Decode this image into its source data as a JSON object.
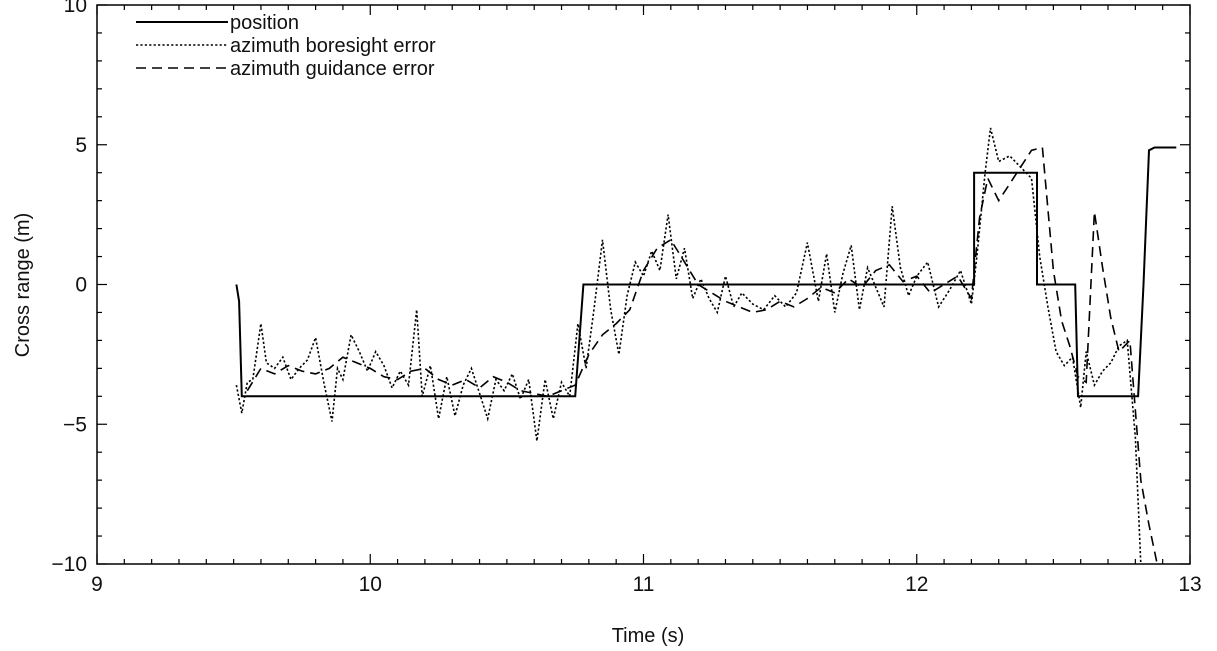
{
  "chart_data": {
    "type": "line",
    "title": "",
    "xlabel": "Time (s)",
    "ylabel": "Cross range (m)",
    "xlim": [
      9,
      13
    ],
    "ylim": [
      -10,
      10
    ],
    "xticks": [
      9,
      10,
      11,
      12,
      13
    ],
    "yticks": [
      -10,
      -5,
      0,
      5,
      10
    ],
    "xtick_labels": [
      "9",
      "10",
      "11",
      "12",
      "13"
    ],
    "ytick_labels": [
      "−10",
      "−5",
      "0",
      "5",
      "10"
    ],
    "grid": false,
    "legend_placement": "top-left",
    "series": [
      {
        "name": "position",
        "style": "solid",
        "color": "#000000",
        "x": [
          9.51,
          9.52,
          9.53,
          10.75,
          10.78,
          12.21,
          12.21,
          12.44,
          12.44,
          12.58,
          12.59,
          12.81,
          12.83,
          12.85,
          12.87,
          12.95
        ],
        "y": [
          0.0,
          -0.6,
          -4.0,
          -4.0,
          0.0,
          0.0,
          4.0,
          4.0,
          0.0,
          0.0,
          -4.0,
          -4.0,
          0.0,
          4.8,
          4.9,
          4.9
        ]
      },
      {
        "name": "azimuth boresight error",
        "style": "dotted",
        "color": "#000000",
        "x": [
          9.51,
          9.53,
          9.55,
          9.57,
          9.6,
          9.62,
          9.65,
          9.68,
          9.71,
          9.74,
          9.77,
          9.8,
          9.83,
          9.86,
          9.88,
          9.9,
          9.93,
          9.96,
          9.99,
          10.02,
          10.05,
          10.08,
          10.11,
          10.14,
          10.17,
          10.19,
          10.22,
          10.25,
          10.28,
          10.31,
          10.34,
          10.37,
          10.4,
          10.43,
          10.46,
          10.49,
          10.52,
          10.55,
          10.58,
          10.61,
          10.64,
          10.67,
          10.7,
          10.73,
          10.76,
          10.79,
          10.82,
          10.85,
          10.88,
          10.91,
          10.94,
          10.97,
          11.0,
          11.03,
          11.06,
          11.09,
          11.12,
          11.15,
          11.18,
          11.21,
          11.24,
          11.27,
          11.3,
          11.33,
          11.36,
          11.4,
          11.44,
          11.48,
          11.52,
          11.56,
          11.6,
          11.64,
          11.67,
          11.7,
          11.73,
          11.76,
          11.79,
          11.82,
          11.85,
          11.88,
          11.91,
          11.94,
          11.97,
          12.0,
          12.04,
          12.08,
          12.12,
          12.16,
          12.2,
          12.22,
          12.25,
          12.27,
          12.3,
          12.34,
          12.38,
          12.42,
          12.45,
          12.48,
          12.51,
          12.54,
          12.57,
          12.6,
          12.62,
          12.65,
          12.68,
          12.71,
          12.74,
          12.77,
          12.8,
          12.82
        ],
        "y": [
          -3.6,
          -4.6,
          -3.5,
          -3.4,
          -1.4,
          -2.8,
          -3.0,
          -2.6,
          -3.4,
          -3.0,
          -2.7,
          -1.9,
          -3.5,
          -4.9,
          -3.0,
          -3.4,
          -1.8,
          -2.4,
          -3.1,
          -2.4,
          -2.9,
          -3.7,
          -3.1,
          -3.6,
          -0.9,
          -4.0,
          -2.9,
          -4.8,
          -3.3,
          -4.7,
          -3.6,
          -3.0,
          -3.9,
          -4.8,
          -3.4,
          -3.8,
          -3.2,
          -4.1,
          -3.4,
          -5.6,
          -3.4,
          -4.8,
          -3.5,
          -4.0,
          -1.4,
          -3.0,
          -0.8,
          1.6,
          -0.9,
          -2.5,
          -0.4,
          0.8,
          0.3,
          1.2,
          0.5,
          2.5,
          0.2,
          1.3,
          -0.5,
          0.2,
          -0.5,
          -1.0,
          0.3,
          -0.8,
          -0.3,
          -0.7,
          -0.9,
          -0.4,
          -0.8,
          -0.3,
          1.5,
          -0.6,
          1.1,
          -1.0,
          0.4,
          1.4,
          -0.9,
          0.6,
          -0.1,
          -0.8,
          2.8,
          0.6,
          -0.4,
          0.3,
          0.8,
          -0.8,
          -0.2,
          0.5,
          -0.7,
          1.0,
          4.0,
          5.6,
          4.4,
          4.6,
          4.2,
          3.8,
          1.0,
          -0.8,
          -2.4,
          -2.9,
          -2.6,
          -4.4,
          -2.4,
          -3.6,
          -3.1,
          -2.8,
          -2.2,
          -2.0,
          -5.5,
          -10.0
        ]
      },
      {
        "name": "azimuth guidance error",
        "style": "dashed",
        "color": "#000000",
        "x": [
          9.55,
          9.6,
          9.65,
          9.7,
          9.75,
          9.8,
          9.85,
          9.9,
          9.95,
          10.0,
          10.05,
          10.1,
          10.15,
          10.2,
          10.25,
          10.3,
          10.35,
          10.4,
          10.45,
          10.5,
          10.55,
          10.6,
          10.65,
          10.7,
          10.75,
          10.8,
          10.85,
          10.9,
          10.95,
          11.0,
          11.05,
          11.1,
          11.15,
          11.2,
          11.25,
          11.3,
          11.35,
          11.4,
          11.45,
          11.5,
          11.55,
          11.6,
          11.65,
          11.7,
          11.75,
          11.8,
          11.85,
          11.9,
          11.95,
          12.0,
          12.05,
          12.1,
          12.15,
          12.2,
          12.23,
          12.26,
          12.3,
          12.34,
          12.38,
          12.42,
          12.46,
          12.5,
          12.53,
          12.56,
          12.59,
          12.62,
          12.65,
          12.68,
          12.71,
          12.74,
          12.78,
          12.82,
          12.85,
          12.88
        ],
        "y": [
          -3.8,
          -3.0,
          -3.2,
          -2.9,
          -3.1,
          -3.2,
          -3.0,
          -2.6,
          -2.8,
          -3.0,
          -3.3,
          -3.4,
          -3.1,
          -3.0,
          -3.4,
          -3.6,
          -3.4,
          -3.7,
          -3.3,
          -3.5,
          -3.8,
          -3.9,
          -4.0,
          -3.8,
          -3.6,
          -2.5,
          -1.8,
          -1.4,
          -0.9,
          0.5,
          1.3,
          1.6,
          0.8,
          0.0,
          -0.3,
          -0.6,
          -0.8,
          -1.0,
          -0.9,
          -0.6,
          -0.8,
          -0.5,
          -0.1,
          -0.3,
          0.2,
          -0.1,
          0.5,
          0.7,
          0.1,
          0.3,
          -0.3,
          0.0,
          0.3,
          -0.5,
          2.4,
          3.8,
          3.0,
          3.6,
          4.2,
          4.8,
          4.9,
          0.5,
          -1.3,
          -2.2,
          -3.3,
          -3.5,
          2.6,
          0.6,
          -1.2,
          -2.4,
          -2.0,
          -7.0,
          -8.6,
          -10.0
        ]
      }
    ]
  }
}
